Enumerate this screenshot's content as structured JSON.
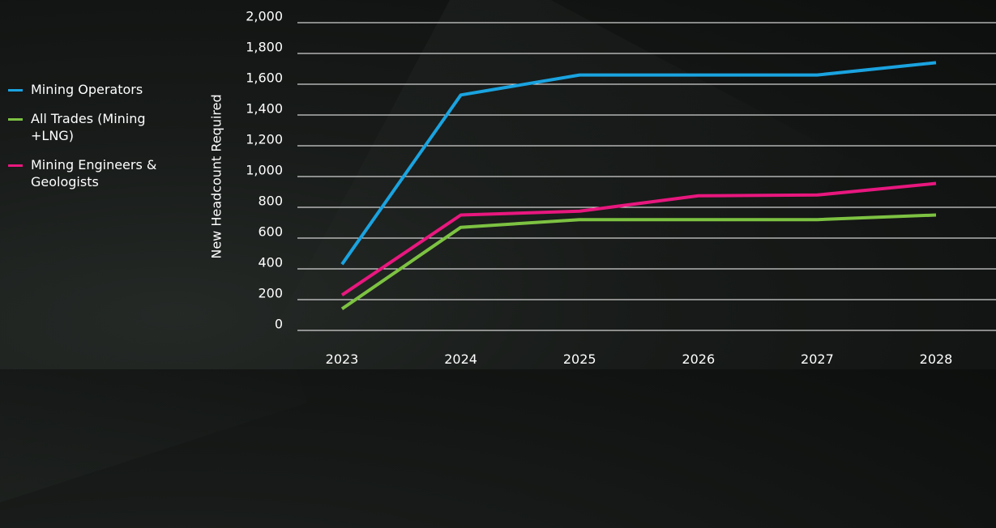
{
  "chart_data": {
    "type": "line",
    "title": "",
    "xlabel": "",
    "ylabel": "New Headcount Required",
    "x": [
      "2023",
      "2024",
      "2025",
      "2026",
      "2027",
      "2028"
    ],
    "ylim": [
      0,
      2000
    ],
    "yticks": [
      0,
      200,
      400,
      600,
      800,
      1000,
      1200,
      1400,
      1600,
      1800,
      2000
    ],
    "ytick_labels": [
      "0",
      "200",
      "400",
      "600",
      "800",
      "1,000",
      "1,200",
      "1,400",
      "1,600",
      "1,800",
      "2,000"
    ],
    "grid": "horizontal",
    "legend_position": "left",
    "series": [
      {
        "name": "Mining Operators",
        "color": "#1aa3e0",
        "values": [
          430,
          1530,
          1660,
          1660,
          1660,
          1740
        ]
      },
      {
        "name": "All Trades (Mining +LNG)",
        "color": "#7dc242",
        "values": [
          140,
          670,
          720,
          720,
          720,
          750
        ]
      },
      {
        "name": "Mining Engineers & Geologists",
        "color": "#e8177e",
        "values": [
          230,
          750,
          775,
          875,
          880,
          955
        ]
      }
    ]
  }
}
